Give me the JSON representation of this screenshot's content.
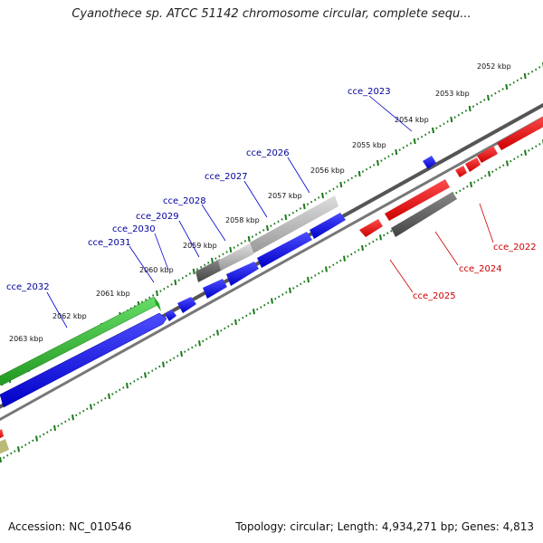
{
  "title": "Cyanothece sp. ATCC 51142 chromosome circular, complete sequ...",
  "footer": {
    "accession": "Accession: NC_010546",
    "summary": "Topology: circular; Length: 4,934,271 bp; Genes: 4,813"
  },
  "colors": {
    "forward_gene": "#0000ee",
    "reverse_gene": "#ee0000",
    "rna_gray": "#666666",
    "light_gray": "#bbbbbb",
    "green": "#33bb33",
    "olive": "#bbbb77",
    "tick": "#1a7a1a",
    "forward_label": "#00009c",
    "reverse_label": "#cc0000"
  },
  "kbp_labels": [
    "2052 kbp",
    "2053 kbp",
    "2054 kbp",
    "2055 kbp",
    "2056 kbp",
    "2057 kbp",
    "2058 kbp",
    "2059 kbp",
    "2060 kbp",
    "2061 kbp",
    "2062 kbp",
    "2063 kbp"
  ],
  "gene_labels_forward": [
    "cce_2023",
    "cce_2026",
    "cce_2027",
    "cce_2028",
    "cce_2029",
    "cce_2030",
    "cce_2031",
    "cce_2032"
  ],
  "gene_labels_reverse": [
    "cce_2022",
    "cce_2024",
    "cce_2025"
  ]
}
